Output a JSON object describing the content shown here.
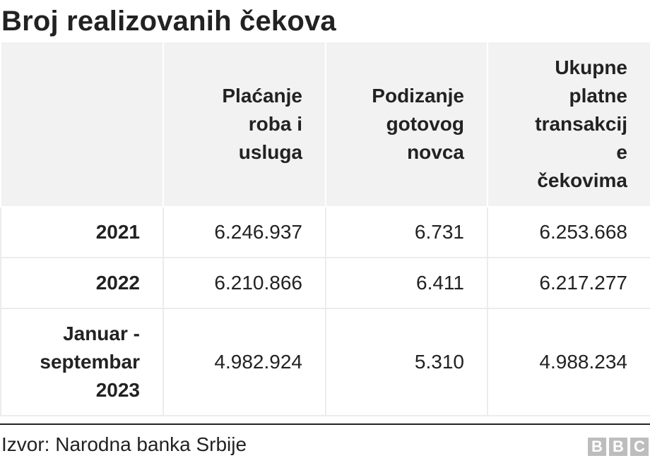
{
  "title": "Broj realizovanih čekova",
  "table": {
    "headers": [
      "",
      "Plaćanje roba i usluga",
      "Podizanje gotovog novca",
      "Ukupne platne transakcije čekovima"
    ],
    "header_display": [
      "",
      "Plaćanje\nroba i\nusluga",
      "Podizanje\ngotovog\nnovca",
      "Ukupne\nplatne\ntransakcij\ne\nčekovima"
    ],
    "rows": [
      {
        "label": "2021",
        "values": [
          "6.246.937",
          "6.731",
          "6.253.668"
        ]
      },
      {
        "label": "2022",
        "values": [
          "6.210.866",
          "6.411",
          "6.217.277"
        ]
      },
      {
        "label": "Januar - septembar 2023",
        "label_display": "Januar -\nseptembar\n2023",
        "values": [
          "4.982.924",
          "5.310",
          "4.988.234"
        ]
      }
    ]
  },
  "chart_data": {
    "type": "table",
    "title": "Broj realizovanih čekova",
    "columns": [
      "",
      "Plaćanje roba i usluga",
      "Podizanje gotovog novca",
      "Ukupne platne transakcije čekovima"
    ],
    "rows": [
      [
        "2021",
        "6.246.937",
        "6.731",
        "6.253.668"
      ],
      [
        "2022",
        "6.210.866",
        "6.411",
        "6.217.277"
      ],
      [
        "Januar - septembar 2023",
        "4.982.924",
        "5.310",
        "4.988.234"
      ]
    ]
  },
  "source": "Izvor: Narodna banka Srbije",
  "logo": [
    "B",
    "B",
    "C"
  ],
  "colors": {
    "header_bg": "#f2f2f2",
    "text": "#222222",
    "logo": "#bdbdbd"
  }
}
